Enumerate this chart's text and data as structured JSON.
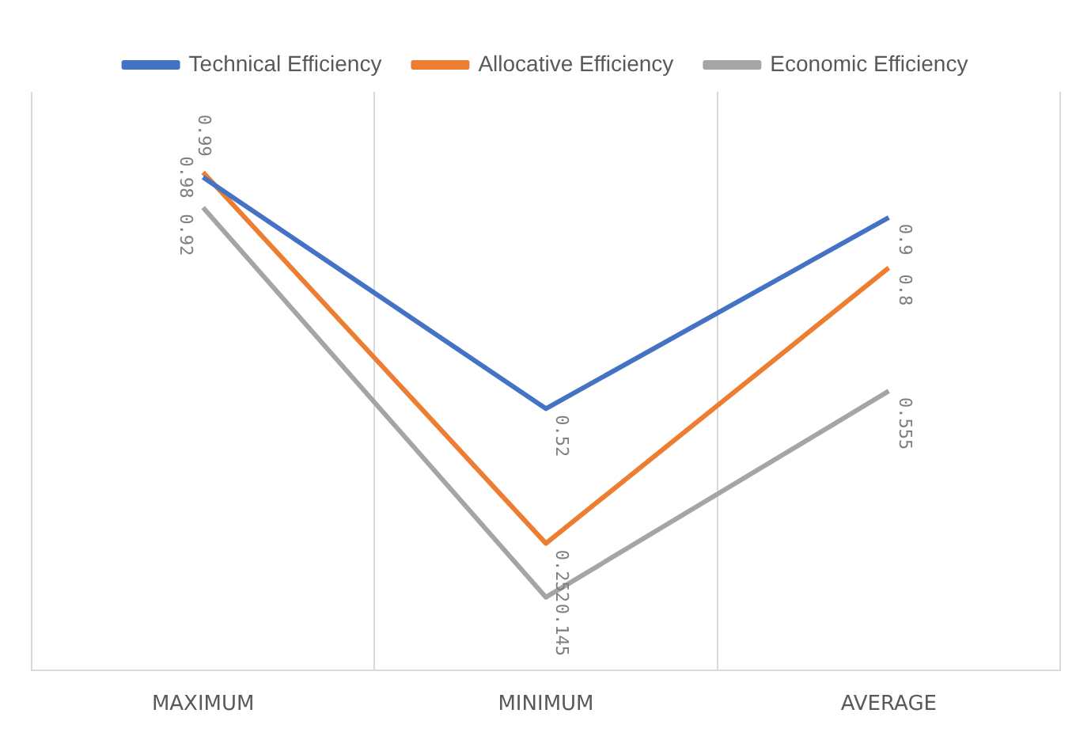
{
  "chart_data": {
    "type": "line",
    "categories": [
      "MAXIMUM",
      "MINIMUM",
      "AVERAGE"
    ],
    "series": [
      {
        "name": "Technical Efficiency",
        "color": "#4472c4",
        "values": [
          0.98,
          0.52,
          0.9
        ]
      },
      {
        "name": "Allocative Efficiency",
        "color": "#ed7d31",
        "values": [
          0.99,
          0.252,
          0.8
        ]
      },
      {
        "name": "Economic Efficiency",
        "color": "#a5a5a5",
        "values": [
          0.92,
          0.145,
          0.555
        ]
      }
    ],
    "ylim": [
      0,
      1.15
    ],
    "tick_labels": "x",
    "grid": "x",
    "legend": "top",
    "marker": "none",
    "line_style": "solid",
    "data_labels": true
  }
}
